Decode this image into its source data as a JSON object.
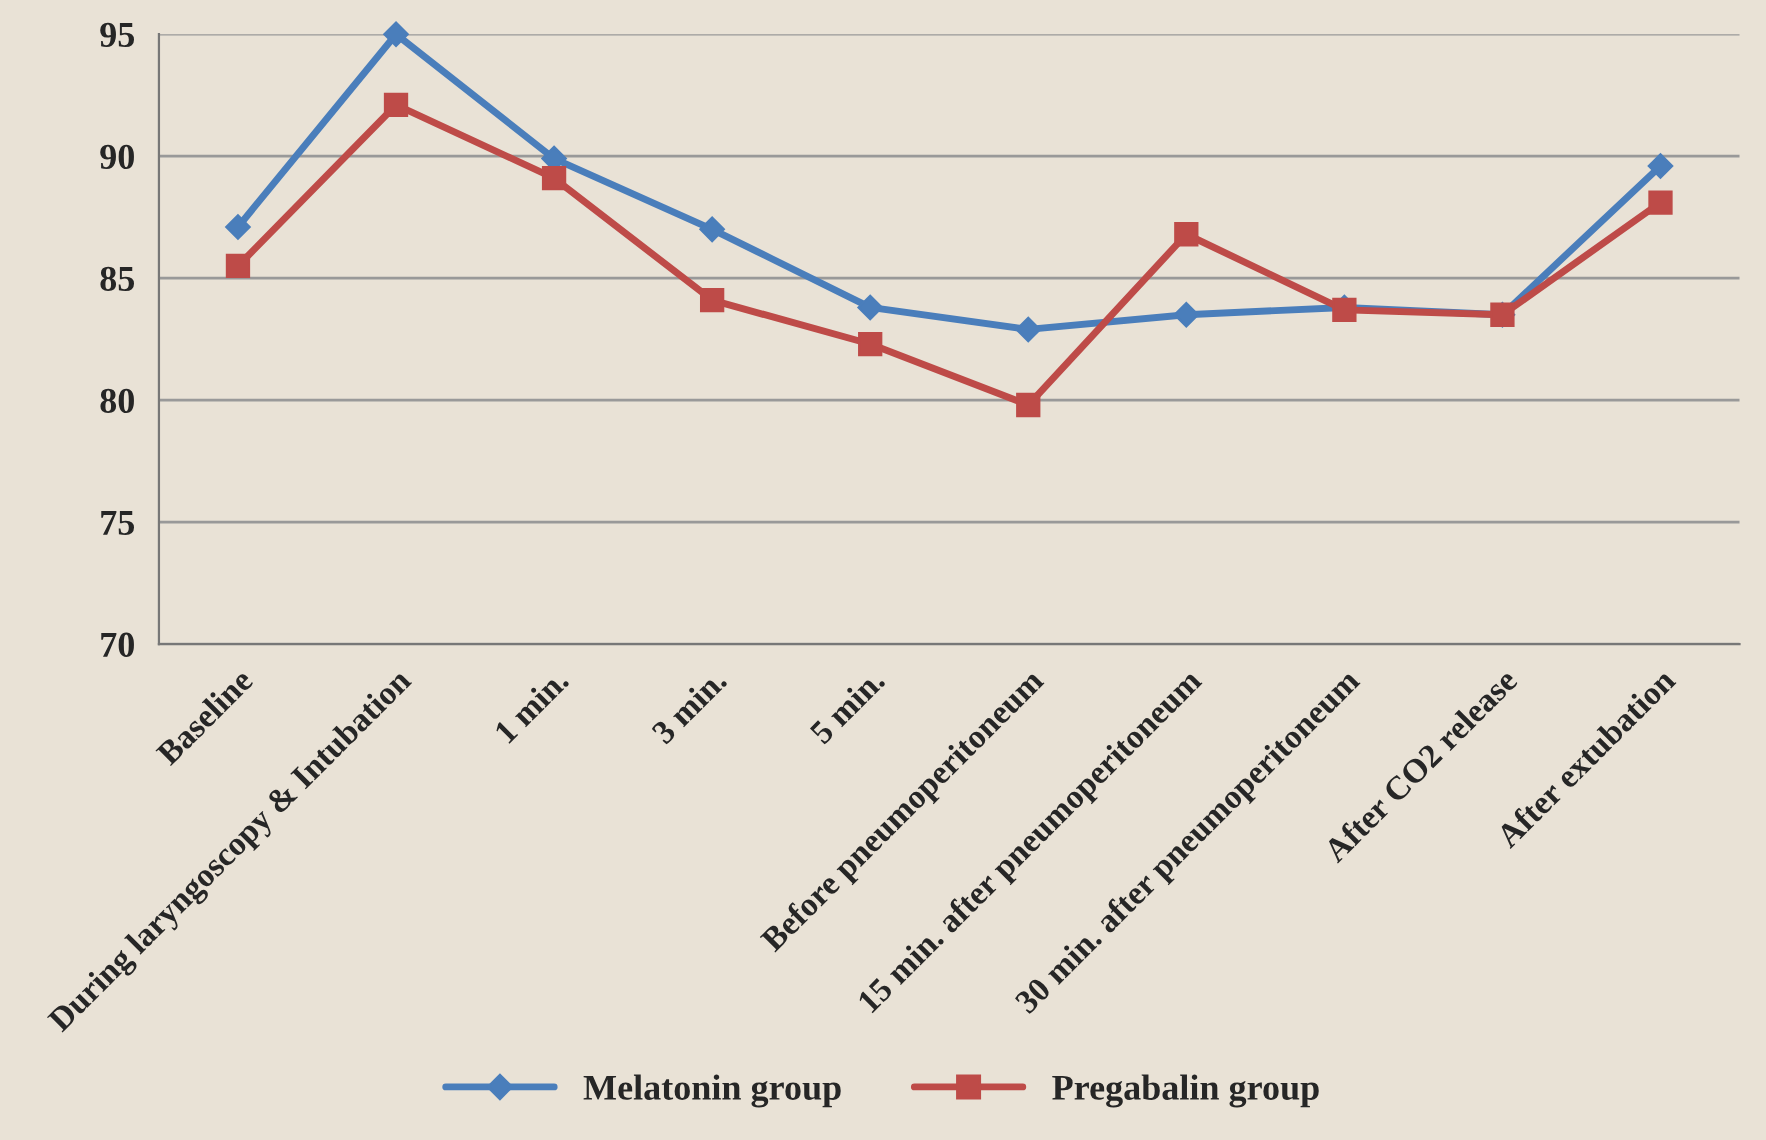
{
  "chart_data": {
    "type": "line",
    "categories": [
      "Baseline",
      "During laryngoscopy & Intubation",
      "1 min.",
      "3 min.",
      "5 min.",
      "Before pneumoperitoneum",
      "15 min. after pneumoperitoneum",
      "30 min. after pneumoperitoneum",
      "After CO2 release",
      "After extubation"
    ],
    "series": [
      {
        "name": "Melatonin group",
        "color": "#4a7ebb",
        "marker": "diamond",
        "values": [
          87.1,
          95,
          89.9,
          87.0,
          83.8,
          82.9,
          83.5,
          83.8,
          83.5,
          89.6
        ]
      },
      {
        "name": "Pregabalin group",
        "color": "#be4b48",
        "marker": "square",
        "values": [
          85.5,
          92.1,
          89.1,
          84.1,
          82.3,
          79.8,
          86.8,
          83.7,
          83.5,
          88.1
        ]
      }
    ],
    "ylim": [
      70,
      95
    ],
    "yticks": [
      70,
      75,
      80,
      85,
      90,
      95
    ],
    "grid": "y",
    "legend": "bottom",
    "line_style": "solid"
  }
}
